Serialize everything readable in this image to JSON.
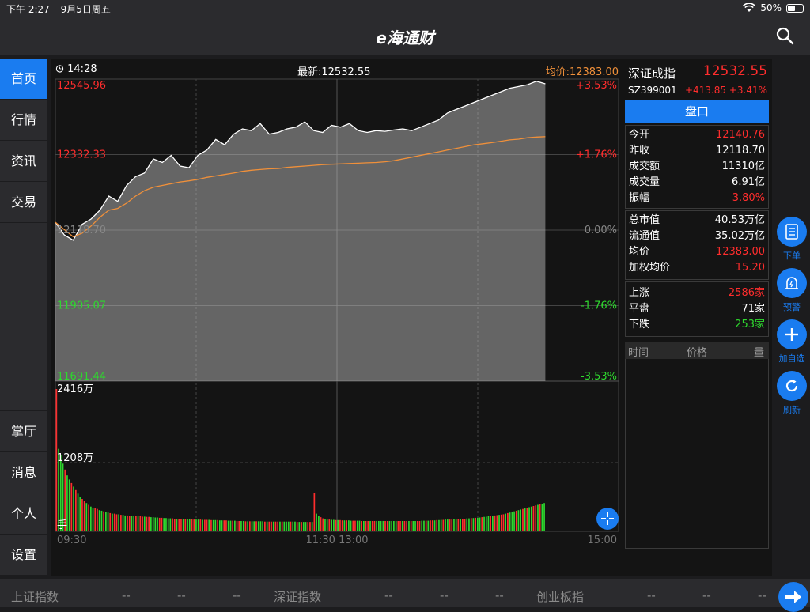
{
  "status_bar": {
    "time": "下午 2:27",
    "date": "9月5日周五",
    "battery": "50%",
    "battery_level": 0.5
  },
  "nav": {
    "title": "e海通财",
    "search_icon": "search-icon"
  },
  "sidebar": {
    "top_items": [
      {
        "label": "首页",
        "active": true
      },
      {
        "label": "行情",
        "active": false
      },
      {
        "label": "资讯",
        "active": false
      },
      {
        "label": "交易",
        "active": false
      }
    ],
    "bottom_items": [
      {
        "label": "掌厅"
      },
      {
        "label": "消息"
      },
      {
        "label": "个人"
      },
      {
        "label": "设置"
      }
    ]
  },
  "chart_header": {
    "time": "14:28",
    "latest": "最新:12532.55",
    "avg": "均价:12383.00"
  },
  "chart_data": {
    "type": "line",
    "title": "",
    "x_ticks": [
      "09:30",
      "11:30 13:00",
      "15:00"
    ],
    "x_range": [
      "09:30",
      "15:00"
    ],
    "y_range": [
      11691.44,
      12545.96
    ],
    "prev_close": 12118.7,
    "y_ticks_left": [
      "12545.96",
      "12332.33",
      "12118.70",
      "11905.07",
      "11691.44"
    ],
    "y_ticks_right": [
      "+3.53%",
      "+1.76%",
      "0.00%",
      "-1.76%",
      "-3.53%"
    ],
    "series": [
      {
        "values": [
          12140.8,
          12105,
          12090,
          12135,
          12150,
          12175,
          12215,
          12200,
          12245,
          12270,
          12280,
          12320,
          12310,
          12330,
          12300,
          12295,
          12330,
          12345,
          12375,
          12360,
          12390,
          12405,
          12400,
          12420,
          12390,
          12395,
          12405,
          12410,
          12425,
          12400,
          12395,
          12415,
          12410,
          12420,
          12400,
          12395,
          12400,
          12398,
          12402,
          12405,
          12400,
          12410,
          12420,
          12430,
          12450,
          12460,
          12470,
          12480,
          12490,
          12500,
          12510,
          12520,
          12525,
          12530,
          12540,
          12532.55
        ]
      },
      {
        "values": [
          12140.8,
          12120,
          12100,
          12110,
          12130,
          12155,
          12175,
          12180,
          12195,
          12215,
          12230,
          12240,
          12245,
          12250,
          12255,
          12258,
          12262,
          12268,
          12272,
          12276,
          12280,
          12285,
          12288,
          12290,
          12292,
          12293,
          12296,
          12298,
          12300,
          12302,
          12304,
          12305,
          12306,
          12307,
          12308,
          12309,
          12310,
          12312,
          12315,
          12320,
          12325,
          12330,
          12335,
          12340,
          12345,
          12350,
          12355,
          12360,
          12363,
          12366,
          12370,
          12374,
          12376,
          12380,
          12382,
          12383
        ]
      }
    ],
    "volume": {
      "y_ticks": [
        "2416万",
        "1208万"
      ],
      "unit_label": "手",
      "max": 2416,
      "values": [
        2416,
        1400,
        1300,
        1150,
        1050,
        950,
        880,
        820,
        760,
        700,
        640,
        590,
        550,
        520,
        480,
        450,
        420,
        400,
        390,
        380,
        360,
        350,
        340,
        330,
        320,
        310,
        300,
        300,
        290,
        290,
        280,
        280,
        270,
        270,
        265,
        265,
        260,
        260,
        255,
        255,
        250,
        250,
        245,
        245,
        240,
        240,
        235,
        235,
        230,
        230,
        225,
        225,
        220,
        220,
        220,
        215,
        215,
        215,
        210,
        210,
        210,
        205,
        205,
        205,
        200,
        200,
        200,
        200,
        195,
        195,
        195,
        195,
        190,
        190,
        190,
        190,
        185,
        185,
        185,
        185,
        180,
        180,
        180,
        180,
        175,
        175,
        175,
        175,
        170,
        170,
        170,
        170,
        170,
        170,
        170,
        170,
        170,
        165,
        165,
        165,
        165,
        165,
        165,
        165,
        165,
        165,
        165,
        165,
        165,
        165,
        165,
        165,
        160,
        160,
        160,
        160,
        160,
        160,
        160,
        160,
        650,
        300,
        260,
        240,
        220,
        210,
        200,
        200,
        195,
        195,
        190,
        190,
        190,
        185,
        185,
        185,
        185,
        180,
        180,
        180,
        180,
        180,
        175,
        175,
        175,
        175,
        175,
        175,
        175,
        175,
        175,
        175,
        175,
        175,
        175,
        175,
        175,
        175,
        175,
        175,
        175,
        175,
        175,
        175,
        175,
        175,
        175,
        175,
        175,
        175,
        180,
        180,
        180,
        180,
        185,
        185,
        185,
        190,
        190,
        195,
        195,
        200,
        200,
        200,
        200,
        205,
        205,
        210,
        210,
        215,
        215,
        220,
        220,
        225,
        225,
        230,
        230,
        235,
        240,
        245,
        250,
        255,
        260,
        265,
        270,
        275,
        280,
        285,
        290,
        300,
        310,
        320,
        330,
        340,
        350,
        360,
        370,
        380,
        390,
        400,
        410,
        420,
        430,
        440,
        450,
        460,
        470,
        480
      ],
      "colors": {
        "up": "#ff2d2d",
        "down": "#2ed82e"
      }
    }
  },
  "quote": {
    "name": "深证成指",
    "price": "12532.55",
    "code": "SZ399001",
    "change": "+413.85",
    "change_pct": "+3.41%",
    "pankou_label": "盘口",
    "group1": [
      {
        "k": "今开",
        "v": "12140.76",
        "color": "red"
      },
      {
        "k": "昨收",
        "v": "12118.70",
        "color": "white"
      },
      {
        "k": "成交额",
        "v": "11310亿",
        "color": "white"
      },
      {
        "k": "成交量",
        "v": "6.91亿",
        "color": "white"
      },
      {
        "k": "振幅",
        "v": "3.80%",
        "color": "red"
      }
    ],
    "group2": [
      {
        "k": "总市值",
        "v": "40.53万亿",
        "color": "white"
      },
      {
        "k": "流通值",
        "v": "35.02万亿",
        "color": "white"
      },
      {
        "k": "均价",
        "v": "12383.00",
        "color": "red"
      },
      {
        "k": "加权均价",
        "v": "15.20",
        "color": "red"
      }
    ],
    "group3": [
      {
        "k": "上涨",
        "v": "2586家",
        "color": "red"
      },
      {
        "k": "平盘",
        "v": "71家",
        "color": "white"
      },
      {
        "k": "下跌",
        "v": "253家",
        "color": "green"
      }
    ],
    "trade_header": {
      "time": "时间",
      "price": "价格",
      "vol": "量"
    }
  },
  "right_tools": [
    {
      "label": "下单",
      "icon": "order-icon"
    },
    {
      "label": "预警",
      "icon": "alarm-icon"
    },
    {
      "label": "加自选",
      "icon": "plus-icon"
    },
    {
      "label": "刷新",
      "icon": "refresh-icon"
    }
  ],
  "ticker": {
    "items": [
      {
        "name": "上证指数",
        "v1": "--",
        "v2": "--",
        "v3": "--"
      },
      {
        "name": "深证指数",
        "v1": "--",
        "v2": "--",
        "v3": "--"
      },
      {
        "name": "创业板指",
        "v1": "--",
        "v2": "--",
        "v3": "--"
      }
    ]
  },
  "colors": {
    "accent": "#1a7cf0",
    "up": "#ff2d2d",
    "down": "#2ed82e",
    "avg_line": "#f0903a"
  }
}
